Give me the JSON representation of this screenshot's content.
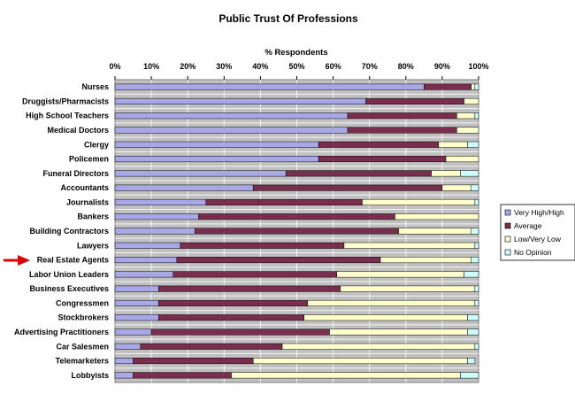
{
  "chart_data": {
    "type": "bar",
    "orientation": "horizontal",
    "stacked": true,
    "title": "Public Trust Of Professions",
    "xlabel": "% Respondents",
    "xlim": [
      0,
      100
    ],
    "x_ticks": [
      "0%",
      "10%",
      "20%",
      "30%",
      "40%",
      "50%",
      "60%",
      "70%",
      "80%",
      "90%",
      "100%"
    ],
    "grid": true,
    "legend_position": "right",
    "highlighted_category": "Real Estate Agents",
    "categories": [
      "Nurses",
      "Druggists/Pharmacists",
      "High School Teachers",
      "Medical Doctors",
      "Clergy",
      "Policemen",
      "Funeral Directors",
      "Accountants",
      "Journalists",
      "Bankers",
      "Building Contractors",
      "Lawyers",
      "Real Estate Agents",
      "Labor Union Leaders",
      "Business Executives",
      "Congressmen",
      "Stockbrokers",
      "Advertising Practitioners",
      "Car Salesmen",
      "Telemarketers",
      "Lobbyists"
    ],
    "series": [
      {
        "name": "Very High/High",
        "color": "#a8a8e8",
        "values": [
          85,
          69,
          64,
          64,
          56,
          56,
          47,
          38,
          25,
          23,
          22,
          18,
          17,
          16,
          12,
          12,
          12,
          10,
          7,
          5,
          5
        ]
      },
      {
        "name": "Average",
        "color": "#7b2d4e",
        "values": [
          13,
          27,
          30,
          30,
          33,
          35,
          40,
          52,
          43,
          54,
          56,
          45,
          56,
          45,
          50,
          41,
          40,
          49,
          39,
          33,
          27
        ]
      },
      {
        "name": "Low/Very Low",
        "color": "#ffffcc",
        "values": [
          1,
          4,
          5,
          6,
          8,
          9,
          8,
          8,
          31,
          23,
          20,
          36,
          25,
          35,
          37,
          46,
          45,
          38,
          53,
          59,
          63
        ]
      },
      {
        "name": "No Opinion",
        "color": "#ccffff",
        "values": [
          1,
          0,
          1,
          0,
          3,
          0,
          5,
          2,
          1,
          0,
          2,
          1,
          2,
          4,
          1,
          1,
          3,
          3,
          1,
          2,
          5
        ]
      }
    ]
  }
}
